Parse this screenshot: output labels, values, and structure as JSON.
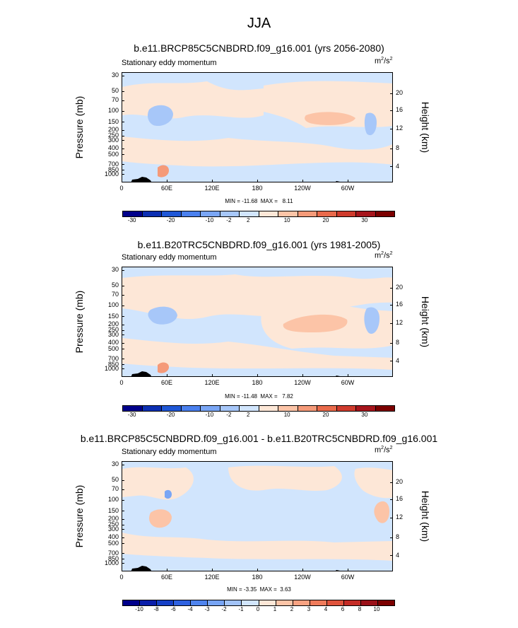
{
  "main_title": "JJA",
  "left_string": "Stationary eddy momentum",
  "units": {
    "base": "m",
    "sup1": "2",
    "mid": "/s",
    "sup2": "2"
  },
  "colors": {
    "bg_field": "#d1e5fd",
    "cbar_9": [
      "#00008b",
      "#0c2fb2",
      "#1f57d6",
      "#4a80ee",
      "#7aa6f5",
      "#a7c7f9",
      "#d1e5fd",
      "#fde7d7",
      "#fcc4a7",
      "#f59a79",
      "#e96a4b",
      "#cf3b2d",
      "#a6151c",
      "#7c0000"
    ],
    "cbar_11": [
      "#00008b",
      "#0a1eaa",
      "#153fc6",
      "#2e61e0",
      "#4f84ee",
      "#77a4f4",
      "#a2c3f8",
      "#d1e5fd",
      "#fde7d7",
      "#fcc4a7",
      "#f8a282",
      "#ef7b5b",
      "#df533c",
      "#c42c26",
      "#9a1018",
      "#7c0000"
    ]
  },
  "chart_data": [
    {
      "type": "heatmap",
      "title": "b.e11.BRCP85C5CNBDRD.f09_g16.001 (yrs 2056-2080)",
      "subtitle": "Stationary eddy momentum",
      "units": "m2/s2",
      "xlabel": "",
      "ylabel": "Pressure (mb)",
      "ylabel_right": "Height (km)",
      "x_ticks": [
        "0",
        "60E",
        "120E",
        "180",
        "120W",
        "60W"
      ],
      "y_ticks": [
        "30",
        "50",
        "70",
        "100",
        "150",
        "200",
        "250",
        "300",
        "400",
        "500",
        "700",
        "850",
        "1000"
      ],
      "y_right_ticks": [
        "20",
        "16",
        "12",
        "8",
        "4"
      ],
      "min": -11.68,
      "max": 8.11,
      "minmax_label": "MIN = -11.68  MAX =   8.11",
      "colorbar_labels": [
        "-30",
        "-20",
        "-10",
        "-2",
        "2",
        "10",
        "20",
        "30"
      ],
      "colorbar_levels": [
        -30,
        -25,
        -20,
        -15,
        -10,
        -5,
        -2,
        2,
        5,
        10,
        15,
        20,
        25,
        30
      ]
    },
    {
      "type": "heatmap",
      "title": "b.e11.B20TRC5CNBDRD.f09_g16.001 (yrs 1981-2005)",
      "subtitle": "Stationary eddy momentum",
      "units": "m2/s2",
      "xlabel": "",
      "ylabel": "Pressure (mb)",
      "ylabel_right": "Height (km)",
      "x_ticks": [
        "0",
        "60E",
        "120E",
        "180",
        "120W",
        "60W"
      ],
      "y_ticks": [
        "30",
        "50",
        "70",
        "100",
        "150",
        "200",
        "250",
        "300",
        "400",
        "500",
        "700",
        "850",
        "1000"
      ],
      "y_right_ticks": [
        "20",
        "16",
        "12",
        "8",
        "4"
      ],
      "min": -11.48,
      "max": 7.82,
      "minmax_label": "MIN = -11.48  MAX =   7.82",
      "colorbar_labels": [
        "-30",
        "-20",
        "-10",
        "-2",
        "2",
        "10",
        "20",
        "30"
      ],
      "colorbar_levels": [
        -30,
        -25,
        -20,
        -15,
        -10,
        -5,
        -2,
        2,
        5,
        10,
        15,
        20,
        25,
        30
      ]
    },
    {
      "type": "heatmap",
      "title": "b.e11.BRCP85C5CNBDRD.f09_g16.001 - b.e11.B20TRC5CNBDRD.f09_g16.001",
      "subtitle": "Stationary eddy momentum",
      "units": "m2/s2",
      "xlabel": "",
      "ylabel": "Pressure (mb)",
      "ylabel_right": "Height (km)",
      "x_ticks": [
        "0",
        "60E",
        "120E",
        "180",
        "120W",
        "60W"
      ],
      "y_ticks": [
        "30",
        "50",
        "70",
        "100",
        "150",
        "200",
        "250",
        "300",
        "400",
        "500",
        "700",
        "850",
        "1000"
      ],
      "y_right_ticks": [
        "20",
        "16",
        "12",
        "8",
        "4"
      ],
      "min": -3.35,
      "max": 3.63,
      "minmax_label": "MIN = -3.35  MAX =  3.63",
      "colorbar_labels": [
        "-10",
        "-8",
        "-6",
        "-4",
        "-3",
        "-2",
        "-1",
        "0",
        "1",
        "2",
        "3",
        "4",
        "6",
        "8",
        "10"
      ],
      "colorbar_levels": [
        -10,
        -8,
        -6,
        -4,
        -3,
        -2,
        -1,
        0,
        1,
        2,
        3,
        4,
        6,
        8,
        10
      ]
    }
  ]
}
